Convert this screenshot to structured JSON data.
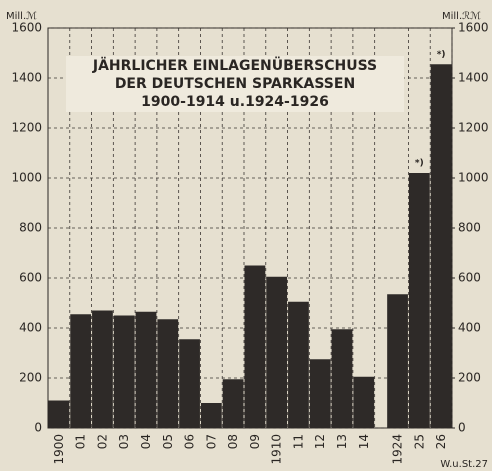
{
  "chart_data": {
    "type": "bar",
    "title": [
      "JÄHRLICHER EINLAGENÜBERSCHUSS",
      "DER DEUTSCHEN SPARKASSEN",
      "1900-1914 u.1924-1926"
    ],
    "ylabel": "Mill.ℳ",
    "y2label": "Mill.ℛℳ",
    "source": "W.u.St.27",
    "categories": [
      "1900",
      "01",
      "02",
      "03",
      "04",
      "05",
      "06",
      "07",
      "08",
      "09",
      "1910",
      "11",
      "12",
      "13",
      "14",
      "1924",
      "25",
      "26"
    ],
    "values": [
      110,
      455,
      470,
      450,
      465,
      435,
      355,
      100,
      195,
      650,
      605,
      505,
      275,
      395,
      205,
      535,
      1020,
      1455
    ],
    "color": "#2e2a28",
    "ylim": [
      0,
      1600
    ],
    "yticks": [
      0,
      200,
      400,
      600,
      800,
      1000,
      1200,
      1400,
      1600
    ],
    "y2lim": [
      0,
      1600
    ],
    "y2ticks": [
      0,
      200,
      400,
      600,
      800,
      1000,
      1200,
      1400,
      1600
    ],
    "grid": true,
    "annotations": [
      {
        "text": "*)",
        "category": "25"
      },
      {
        "text": "*)",
        "category": "26"
      }
    ]
  }
}
